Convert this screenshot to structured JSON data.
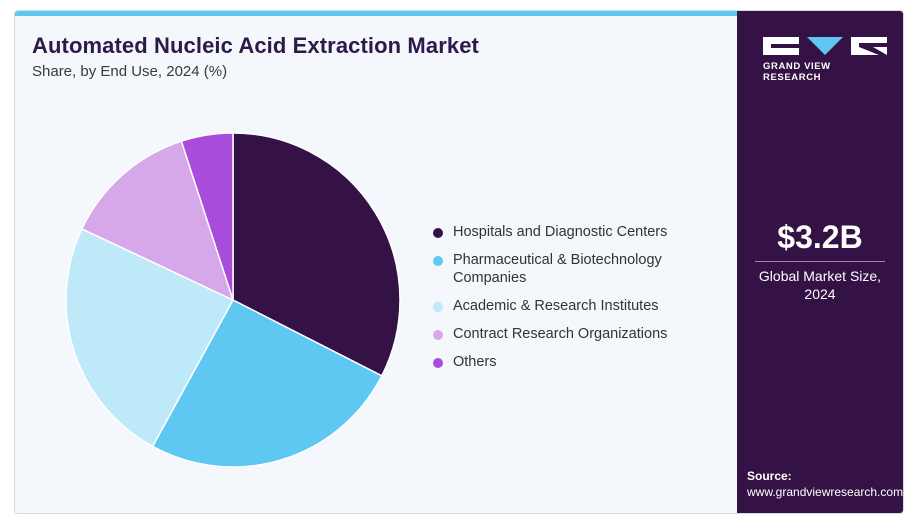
{
  "header": {
    "title": "Automated Nucleic Acid Extraction Market",
    "subtitle": "Share, by End Use, 2024 (%)"
  },
  "chart_data": {
    "type": "pie",
    "categories": [
      "Hospitals and Diagnostic Centers",
      "Pharmaceutical & Biotechnology Companies",
      "Academic & Research Institutes",
      "Contract Research Organizations",
      "Others"
    ],
    "values": [
      32.5,
      25.5,
      24.0,
      13.0,
      5.0
    ],
    "colors": [
      "#351246",
      "#5ec8f2",
      "#bde9f8",
      "#d6a8ea",
      "#a84ddb"
    ],
    "legend_position": "right",
    "start_angle_deg": 0,
    "direction": "clockwise"
  },
  "sidebar": {
    "logo_icon": "gvr-logo-icon",
    "logo_text": "GRAND VIEW RESEARCH",
    "market_size": "$3.2B",
    "market_size_caption_line1": "Global Market Size,",
    "market_size_caption_line2": "2024",
    "source_label": "Source:",
    "source_url": "www.grandviewresearch.com"
  }
}
